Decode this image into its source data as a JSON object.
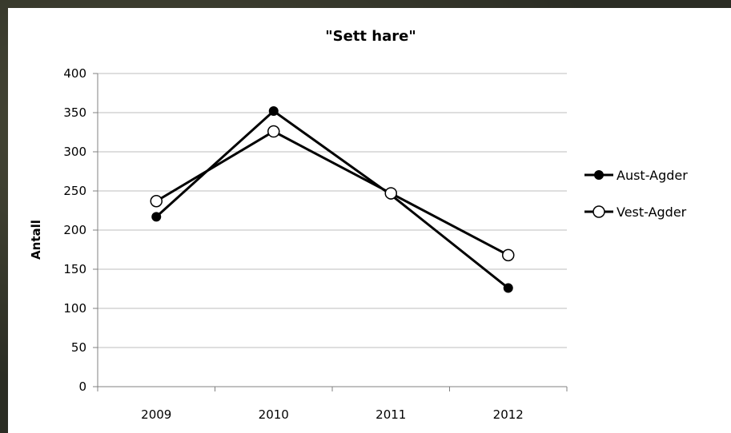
{
  "chart_data": {
    "type": "line",
    "title": "\"Sett hare\"",
    "xlabel": "",
    "ylabel": "Antall",
    "categories": [
      "2009",
      "2010",
      "2011",
      "2012"
    ],
    "ylim": [
      0,
      400
    ],
    "yticks": [
      "0",
      "50",
      "100",
      "150",
      "200",
      "250",
      "300",
      "350",
      "400"
    ],
    "grid": true,
    "legend_position": "right",
    "series": [
      {
        "name": "Aust-Agder",
        "values": [
          217,
          352,
          245,
          126
        ],
        "marker": "filled-circle",
        "color": "#000000"
      },
      {
        "name": "Vest-Agder",
        "values": [
          237,
          326,
          247,
          168
        ],
        "marker": "open-circle",
        "color": "#000000"
      }
    ]
  }
}
